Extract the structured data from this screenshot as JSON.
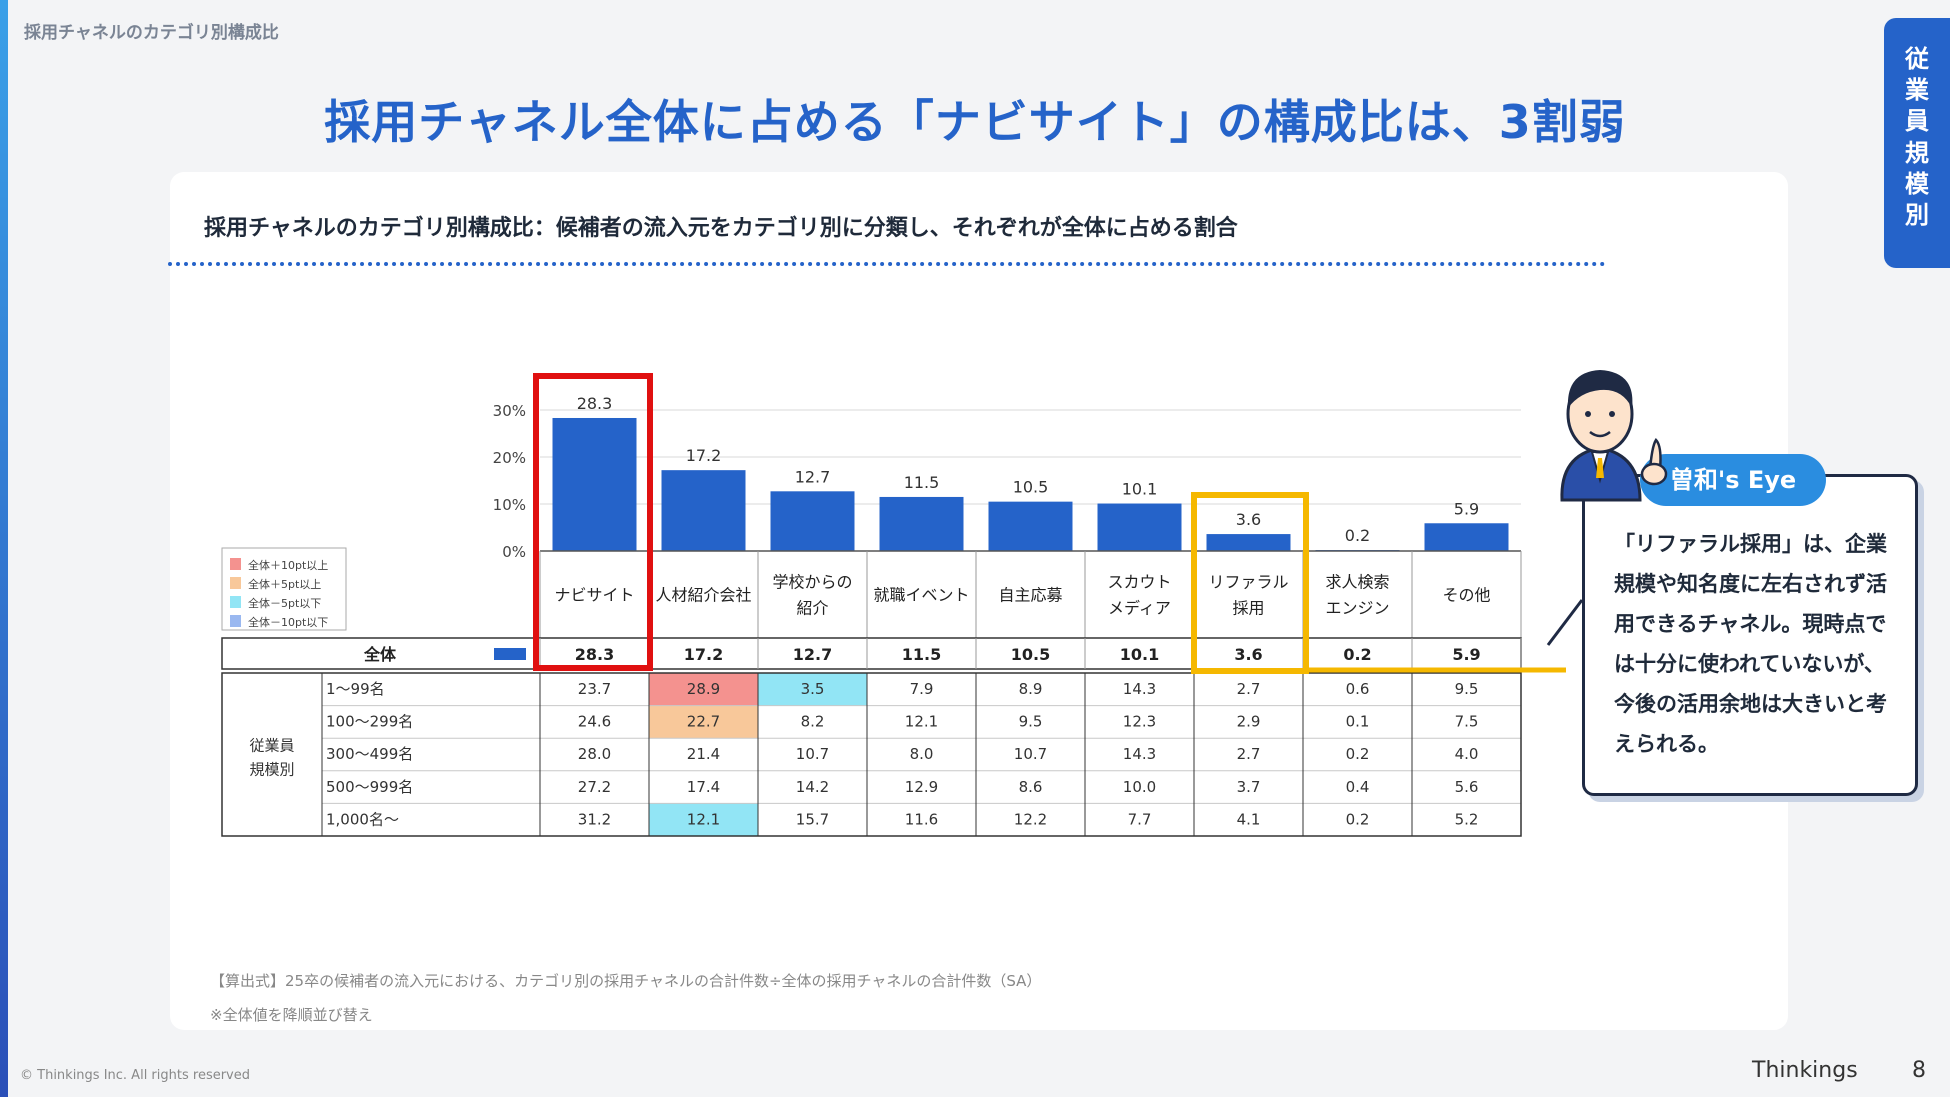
{
  "breadcrumb": "採用チャネルのカテゴリ別構成比",
  "title": "採用チャネル全体に占める「ナビサイト」の構成比は、3割弱",
  "side_tab": [
    "従",
    "業",
    "員",
    "規",
    "模",
    "別"
  ],
  "chart_heading": "採用チャネルのカテゴリ別構成比：候補者の流入元をカテゴリ別に分類し、それぞれが全体に占める割合",
  "legend": [
    "全体＋10pt以上",
    "全体＋5pt以上",
    "全体－5pt以下",
    "全体－10pt以下"
  ],
  "colors": {
    "bar": "#2563c9",
    "plus10": "#f4928f",
    "plus5": "#f8c89a",
    "minus5": "#92e5f5",
    "minus10": "#9ab8f0",
    "highlight_red": "#e01010",
    "highlight_yellow": "#f5b800"
  },
  "chart_data": {
    "type": "bar",
    "categories": [
      "ナビサイト",
      "人材紹介会社",
      "学校からの\n紹介",
      "就職イベント",
      "自主応募",
      "スカウト\nメディア",
      "リファラル\n採用",
      "求人検索\nエンジン",
      "その他"
    ],
    "values": [
      28.3,
      17.2,
      12.7,
      11.5,
      10.5,
      10.1,
      3.6,
      0.2,
      5.9
    ],
    "value_labels": [
      "28.3",
      "17.2",
      "12.7",
      "11.5",
      "10.5",
      "10.1",
      "3.6",
      "0.2",
      "5.9"
    ],
    "yticks": [
      "0%",
      "10%",
      "20%",
      "30%"
    ],
    "ylim": [
      0,
      30
    ],
    "grid": true
  },
  "table": {
    "total_label": "全体",
    "total_values": [
      "28.3",
      "17.2",
      "12.7",
      "11.5",
      "10.5",
      "10.1",
      "3.6",
      "0.2",
      "5.9"
    ],
    "group_label": [
      "従業員",
      "規模別"
    ],
    "rows": [
      {
        "label": "1～99名",
        "values": [
          "23.7",
          "28.9",
          "3.5",
          "7.9",
          "8.9",
          "14.3",
          "2.7",
          "0.6",
          "9.5"
        ],
        "flags": [
          "",
          "plus10",
          "minus5",
          "",
          "",
          "",
          "",
          "",
          ""
        ]
      },
      {
        "label": "100～299名",
        "values": [
          "24.6",
          "22.7",
          "8.2",
          "12.1",
          "9.5",
          "12.3",
          "2.9",
          "0.1",
          "7.5"
        ],
        "flags": [
          "",
          "plus5",
          "",
          "",
          "",
          "",
          "",
          "",
          ""
        ]
      },
      {
        "label": "300～499名",
        "values": [
          "28.0",
          "21.4",
          "10.7",
          "8.0",
          "10.7",
          "14.3",
          "2.7",
          "0.2",
          "4.0"
        ],
        "flags": [
          "",
          "",
          "",
          "",
          "",
          "",
          "",
          "",
          ""
        ]
      },
      {
        "label": "500～999名",
        "values": [
          "27.2",
          "17.4",
          "14.2",
          "12.9",
          "8.6",
          "10.0",
          "3.7",
          "0.4",
          "5.6"
        ],
        "flags": [
          "",
          "",
          "",
          "",
          "",
          "",
          "",
          "",
          ""
        ]
      },
      {
        "label": "1,000名～",
        "values": [
          "31.2",
          "12.1",
          "15.7",
          "11.6",
          "12.2",
          "7.7",
          "4.1",
          "0.2",
          "5.2"
        ],
        "flags": [
          "",
          "minus5",
          "",
          "",
          "",
          "",
          "",
          "",
          ""
        ]
      }
    ]
  },
  "callout": {
    "badge": "曽和's Eye",
    "text": "「リファラル採用」は、企業規模や知名度に左右されず活用できるチャネル。現時点では十分に使われていないが、今後の活用余地は大きいと考えられる。"
  },
  "footer": {
    "formula": "【算出式】25卒の候補者の流入元における、カテゴリ別の採用チャネルの合計件数÷全体の採用チャネルの合計件数（SA）",
    "note": "※全体値を降順並び替え",
    "copyright": "© Thinkings Inc. All rights reserved",
    "brand": "Thinkings",
    "page": "8"
  }
}
